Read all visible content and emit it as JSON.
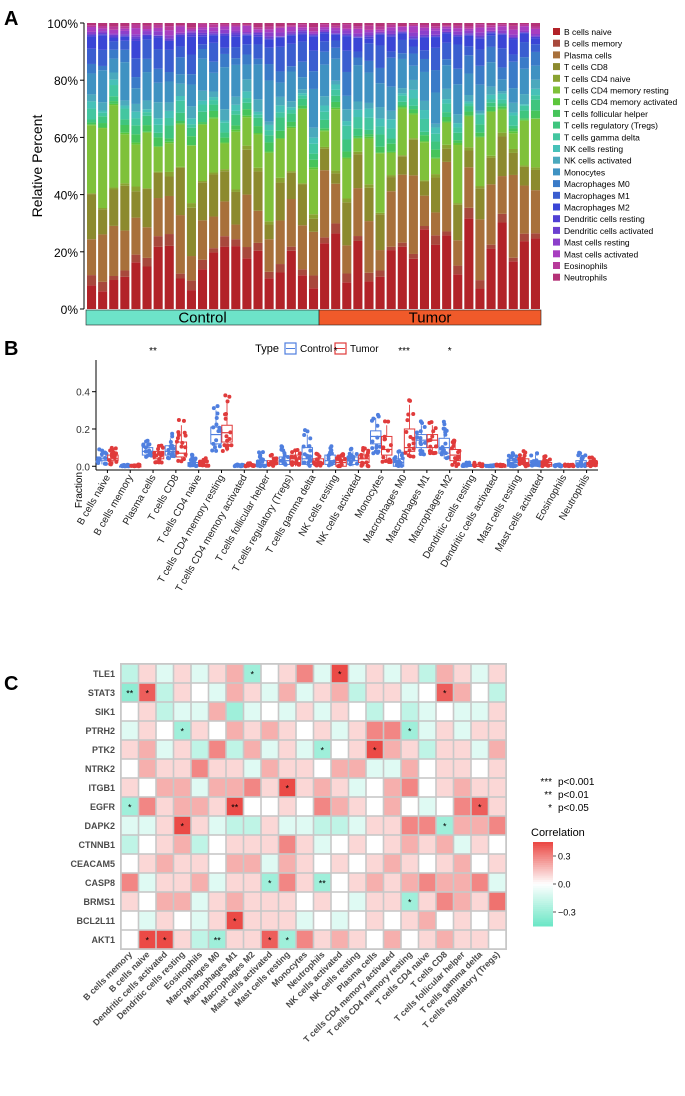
{
  "panels": {
    "a": {
      "letter": "A"
    },
    "b": {
      "letter": "B"
    },
    "c": {
      "letter": "C"
    }
  },
  "chart_data": [
    {
      "type": "bar",
      "subtype": "stacked-100",
      "ylabel": "Relative Percent",
      "ytick_labels": [
        "0%",
        "20%",
        "40%",
        "60%",
        "80%",
        "100%"
      ],
      "ylim": [
        0,
        100
      ],
      "group_bar": {
        "labels": [
          "Control",
          "Tumor"
        ],
        "sizes": [
          21,
          20
        ]
      },
      "cell_types": [
        "B cells naive",
        "B cells memory",
        "Plasma cells",
        "T cells CD8",
        "T cells CD4 naive",
        "T cells CD4 memory resting",
        "T cells CD4 memory activated",
        "T cells follicular helper",
        "T cells regulatory (Tregs)",
        "T cells gamma delta",
        "NK cells resting",
        "NK cells activated",
        "Monocytes",
        "Macrophages M0",
        "Macrophages M1",
        "Macrophages M2",
        "Dendritic cells resting",
        "Dendritic cells activated",
        "Mast cells resting",
        "Mast cells activated",
        "Eosinophils",
        "Neutrophils"
      ],
      "colors": [
        "#b22228",
        "#a8483c",
        "#a8703b",
        "#8c8a2e",
        "#8aa332",
        "#7fc13a",
        "#5cc63c",
        "#46c45a",
        "#3fc57e",
        "#43c6a0",
        "#47c1b8",
        "#4ba9bd",
        "#3f92c2",
        "#3a7bc8",
        "#3a5ed0",
        "#3a45d6",
        "#5040d4",
        "#6c40d0",
        "#8c3fca",
        "#a83ec0",
        "#b83a9a",
        "#b53277"
      ],
      "legend": "right",
      "samples_n": 41
    },
    {
      "type": "box",
      "legend_title": "Type",
      "series": [
        {
          "name": "Control",
          "color": "#4f7fdf"
        },
        {
          "name": "Tumor",
          "color": "#e03b3b"
        }
      ],
      "ylabel": "Fraction",
      "yticks": [
        0.0,
        0.2,
        0.4
      ],
      "ytick_labels": [
        "0.0",
        "0.2",
        "0.4"
      ],
      "ylim": [
        -0.02,
        0.57
      ],
      "categories": [
        "B cells naive",
        "B cells memory",
        "Plasma cells",
        "T cells CD8",
        "T cells CD4 naive",
        "T cells CD4 memory resting",
        "T cells CD4 memory activated",
        "T cells follicular helper",
        "T cells regulatory (Tregs)",
        "T cells gamma delta",
        "NK cells resting",
        "NK cells activated",
        "Monocytes",
        "Macrophages M0",
        "Macrophages M1",
        "Macrophages M2",
        "Dendritic cells resting",
        "Dendritic cells activated",
        "Mast cells resting",
        "Mast cells activated",
        "Eosinophils",
        "Neutrophils"
      ],
      "control": [
        [
          0.01,
          0.03,
          0.04,
          0.05,
          0.08
        ],
        [
          0.0,
          0.0,
          0.0,
          0.0,
          0.01
        ],
        [
          0.05,
          0.06,
          0.08,
          0.1,
          0.12
        ],
        [
          0.04,
          0.06,
          0.08,
          0.11,
          0.15
        ],
        [
          0.0,
          0.0,
          0.01,
          0.02,
          0.05
        ],
        [
          0.08,
          0.12,
          0.17,
          0.21,
          0.3
        ],
        [
          0.0,
          0.0,
          0.0,
          0.0,
          0.01
        ],
        [
          0.0,
          0.0,
          0.01,
          0.03,
          0.06
        ],
        [
          0.0,
          0.01,
          0.03,
          0.05,
          0.09
        ],
        [
          0.0,
          0.01,
          0.04,
          0.1,
          0.17
        ],
        [
          0.0,
          0.01,
          0.03,
          0.06,
          0.09
        ],
        [
          0.0,
          0.01,
          0.03,
          0.05,
          0.08
        ],
        [
          0.07,
          0.12,
          0.16,
          0.19,
          0.26
        ],
        [
          0.0,
          0.0,
          0.02,
          0.04,
          0.07
        ],
        [
          0.06,
          0.1,
          0.14,
          0.17,
          0.22
        ],
        [
          0.04,
          0.07,
          0.1,
          0.15,
          0.21
        ],
        [
          0.0,
          0.0,
          0.0,
          0.01,
          0.02
        ],
        [
          0.0,
          0.0,
          0.0,
          0.01,
          0.01
        ],
        [
          0.0,
          0.0,
          0.02,
          0.03,
          0.06
        ],
        [
          0.0,
          0.0,
          0.02,
          0.03,
          0.06
        ],
        [
          0.0,
          0.0,
          0.0,
          0.01,
          0.01
        ],
        [
          0.0,
          0.0,
          0.01,
          0.03,
          0.06
        ]
      ],
      "tumor": [
        [
          0.01,
          0.03,
          0.04,
          0.06,
          0.09
        ],
        [
          0.0,
          0.0,
          0.0,
          0.0,
          0.01
        ],
        [
          0.02,
          0.04,
          0.06,
          0.08,
          0.1
        ],
        [
          0.02,
          0.05,
          0.07,
          0.13,
          0.22
        ],
        [
          0.0,
          0.0,
          0.0,
          0.01,
          0.03
        ],
        [
          0.08,
          0.13,
          0.18,
          0.22,
          0.35
        ],
        [
          0.0,
          0.0,
          0.01,
          0.01,
          0.02
        ],
        [
          0.0,
          0.01,
          0.02,
          0.03,
          0.05
        ],
        [
          0.0,
          0.01,
          0.04,
          0.06,
          0.08
        ],
        [
          0.0,
          0.01,
          0.02,
          0.04,
          0.06
        ],
        [
          0.0,
          0.0,
          0.02,
          0.03,
          0.06
        ],
        [
          0.0,
          0.02,
          0.04,
          0.06,
          0.09
        ],
        [
          0.02,
          0.06,
          0.09,
          0.16,
          0.22
        ],
        [
          0.05,
          0.08,
          0.1,
          0.2,
          0.33
        ],
        [
          0.07,
          0.1,
          0.14,
          0.17,
          0.22
        ],
        [
          0.0,
          0.03,
          0.06,
          0.09,
          0.13
        ],
        [
          0.0,
          0.0,
          0.0,
          0.01,
          0.02
        ],
        [
          0.0,
          0.0,
          0.0,
          0.0,
          0.01
        ],
        [
          0.0,
          0.01,
          0.02,
          0.04,
          0.07
        ],
        [
          0.0,
          0.0,
          0.01,
          0.02,
          0.04
        ],
        [
          0.0,
          0.0,
          0.0,
          0.0,
          0.01
        ],
        [
          0.0,
          0.0,
          0.01,
          0.02,
          0.04
        ]
      ],
      "significance": [
        "",
        "",
        "**",
        "",
        "",
        "",
        "",
        "",
        "",
        "",
        "*",
        "",
        "",
        "***",
        "",
        "*",
        "",
        "",
        "",
        "",
        "",
        ""
      ]
    },
    {
      "type": "heatmap",
      "rows": [
        "TLE1",
        "STAT3",
        "SIK1",
        "PTRH2",
        "PTK2",
        "NTRK2",
        "ITGB1",
        "EGFR",
        "DAPK2",
        "CTNNB1",
        "CEACAM5",
        "CASP8",
        "BRMS1",
        "BCL2L11",
        "AKT1"
      ],
      "cols": [
        "B cells memory",
        "B cells naive",
        "Dendritic cells activated",
        "Dendritic cells resting",
        "Eosinophils",
        "Macrophages M0",
        "Macrophages M1",
        "Macrophages M2",
        "Mast cells activated",
        "Mast cells resting",
        "Monocytes",
        "Neutrophils",
        "NK cells activated",
        "NK cells resting",
        "Plasma cells",
        "T cells CD4 memory activated",
        "T cells CD4 memory resting",
        "T cells CD4 naive",
        "T cells CD8",
        "T cells follicular helper",
        "T cells gamma delta",
        "T cells regulatory (Tregs)"
      ],
      "values": [
        [
          -0.2,
          0.1,
          -0.1,
          0.1,
          -0.1,
          0.1,
          0.2,
          -0.3,
          0.0,
          0.1,
          0.3,
          -0.1,
          0.45,
          -0.1,
          0.1,
          -0.1,
          0.1,
          -0.2,
          0.2,
          0.1,
          -0.1,
          0.1
        ],
        [
          -0.35,
          0.4,
          -0.2,
          0.1,
          0.0,
          -0.1,
          0.2,
          0.1,
          -0.1,
          0.2,
          -0.1,
          0.1,
          0.2,
          -0.2,
          0.1,
          0.1,
          -0.1,
          0.0,
          0.4,
          0.2,
          0.0,
          -0.2
        ],
        [
          0.0,
          0.1,
          -0.2,
          -0.1,
          -0.1,
          0.2,
          -0.3,
          -0.1,
          0.0,
          -0.1,
          0.1,
          -0.1,
          0.1,
          0.0,
          -0.2,
          0.0,
          -0.2,
          -0.1,
          0.0,
          -0.1,
          -0.1,
          0.1
        ],
        [
          -0.1,
          0.1,
          0.0,
          -0.3,
          0.1,
          0.0,
          0.2,
          0.1,
          0.2,
          0.1,
          0.0,
          0.1,
          -0.1,
          0.1,
          0.3,
          0.3,
          -0.3,
          -0.1,
          0.1,
          -0.1,
          0.1,
          0.1
        ],
        [
          0.1,
          0.2,
          -0.1,
          0.1,
          -0.2,
          0.3,
          -0.2,
          0.2,
          -0.1,
          0.1,
          -0.1,
          -0.3,
          0.0,
          0.1,
          0.45,
          0.2,
          0.1,
          -0.2,
          0.1,
          0.1,
          -0.1,
          0.2
        ],
        [
          0.0,
          0.2,
          0.1,
          0.1,
          0.3,
          0.1,
          0.1,
          -0.1,
          0.2,
          0.1,
          0.1,
          0.0,
          0.2,
          0.2,
          -0.1,
          -0.1,
          0.2,
          0.0,
          0.1,
          0.1,
          0.0,
          0.1
        ],
        [
          0.1,
          0.0,
          0.2,
          0.2,
          -0.1,
          0.2,
          0.2,
          0.3,
          0.1,
          0.45,
          0.1,
          0.2,
          0.1,
          -0.1,
          0.0,
          0.2,
          0.3,
          0.0,
          0.1,
          0.2,
          0.1,
          0.1
        ],
        [
          -0.3,
          0.3,
          0.1,
          0.2,
          0.2,
          0.1,
          0.45,
          0.0,
          0.0,
          0.1,
          0.0,
          0.3,
          0.2,
          0.1,
          0.0,
          0.2,
          0.0,
          -0.1,
          0.0,
          0.3,
          0.4,
          0.1
        ],
        [
          -0.1,
          -0.1,
          0.1,
          0.45,
          0.1,
          -0.1,
          -0.2,
          -0.2,
          0.1,
          -0.1,
          -0.1,
          -0.2,
          -0.2,
          -0.1,
          0.1,
          0.1,
          0.3,
          0.3,
          -0.3,
          0.2,
          0.2,
          0.3
        ],
        [
          -0.2,
          0.0,
          0.1,
          0.2,
          -0.2,
          0.0,
          0.1,
          0.1,
          0.1,
          0.3,
          0.1,
          -0.1,
          0.0,
          0.1,
          0.0,
          0.1,
          0.2,
          0.1,
          0.2,
          -0.1,
          0.1,
          0.0
        ],
        [
          0.0,
          0.1,
          0.2,
          0.1,
          0.1,
          0.0,
          0.2,
          0.2,
          -0.1,
          0.2,
          0.1,
          0.0,
          0.1,
          0.0,
          0.1,
          0.2,
          0.1,
          0.0,
          0.1,
          0.2,
          0.0,
          0.1
        ],
        [
          0.3,
          -0.1,
          0.1,
          0.1,
          0.2,
          -0.1,
          0.1,
          0.1,
          -0.3,
          0.3,
          0.1,
          -0.3,
          0.0,
          0.1,
          0.2,
          0.1,
          0.2,
          0.3,
          0.2,
          0.2,
          0.3,
          -0.1
        ],
        [
          0.1,
          0.0,
          0.2,
          0.2,
          -0.1,
          0.1,
          0.2,
          0.1,
          0.1,
          0.1,
          0.0,
          0.1,
          0.0,
          -0.1,
          0.1,
          0.1,
          -0.3,
          0.1,
          0.3,
          0.2,
          0.1,
          0.35
        ],
        [
          0.0,
          -0.1,
          0.1,
          0.0,
          -0.1,
          0.1,
          0.45,
          0.1,
          0.1,
          0.1,
          -0.1,
          0.0,
          -0.1,
          0.0,
          0.1,
          0.0,
          0.1,
          0.2,
          0.0,
          0.1,
          0.0,
          0.1
        ],
        [
          0.0,
          0.45,
          0.45,
          0.1,
          -0.2,
          -0.3,
          0.1,
          0.1,
          0.4,
          -0.3,
          0.3,
          0.1,
          0.2,
          0.1,
          0.0,
          0.2,
          0.0,
          0.1,
          0.2,
          0.1,
          0.1,
          0.0
        ]
      ],
      "stars": [
        [
          "",
          "",
          "",
          "",
          "",
          "",
          "",
          "*",
          "",
          "",
          "",
          "",
          "*",
          "",
          "",
          "",
          "",
          "",
          "",
          "",
          "",
          ""
        ],
        [
          "**",
          "*",
          "",
          "",
          "",
          "",
          "",
          "",
          "",
          "",
          "",
          "",
          "",
          "",
          "",
          "",
          "",
          "",
          "*",
          "",
          "",
          ""
        ],
        [
          "",
          "",
          "",
          "",
          "",
          "",
          "",
          "",
          "",
          "",
          "",
          "",
          "",
          "",
          "",
          "",
          "",
          "",
          "",
          "",
          "",
          ""
        ],
        [
          "",
          "",
          "",
          "*",
          "",
          "",
          "",
          "",
          "",
          "",
          "",
          "",
          "",
          "",
          "",
          "",
          "*",
          "",
          "",
          "",
          "",
          ""
        ],
        [
          "",
          "",
          "",
          "",
          "",
          "",
          "",
          "",
          "",
          "",
          "",
          "*",
          "",
          "",
          "*",
          "",
          "",
          "",
          "",
          "",
          "",
          ""
        ],
        [
          "",
          "",
          "",
          "",
          "",
          "",
          "",
          "",
          "",
          "",
          "",
          "",
          "",
          "",
          "",
          "",
          "",
          "",
          "",
          "",
          "",
          ""
        ],
        [
          "",
          "",
          "",
          "",
          "",
          "",
          "",
          "",
          "",
          "*",
          "",
          "",
          "",
          "",
          "",
          "",
          "",
          "",
          "",
          "",
          "",
          ""
        ],
        [
          "*",
          "",
          "",
          "",
          "",
          "",
          "**",
          "",
          "",
          "",
          "",
          "",
          "",
          "",
          "",
          "",
          "",
          "",
          "",
          "",
          "*",
          ""
        ],
        [
          "",
          "",
          "",
          "*",
          "",
          "",
          "",
          "",
          "",
          "",
          "",
          "",
          "",
          "",
          "",
          "",
          "",
          "",
          "*",
          "",
          "",
          ""
        ],
        [
          "",
          "",
          "",
          "",
          "",
          "",
          "",
          "",
          "",
          "",
          "",
          "",
          "",
          "",
          "",
          "",
          "",
          "",
          "",
          "",
          "",
          ""
        ],
        [
          "",
          "",
          "",
          "",
          "",
          "",
          "",
          "",
          "",
          "",
          "",
          "",
          "",
          "",
          "",
          "",
          "",
          "",
          "",
          "",
          "",
          ""
        ],
        [
          "",
          "",
          "",
          "",
          "",
          "",
          "",
          "",
          "*",
          "",
          "",
          "**",
          "",
          "",
          "",
          "",
          "",
          "",
          "",
          "",
          "",
          ""
        ],
        [
          "",
          "",
          "",
          "",
          "",
          "",
          "",
          "",
          "",
          "",
          "",
          "",
          "",
          "",
          "",
          "",
          "*",
          "",
          "",
          "",
          "",
          ""
        ],
        [
          "",
          "",
          "",
          "",
          "",
          "",
          "*",
          "",
          "",
          "",
          "",
          "",
          "",
          "",
          "",
          "",
          "",
          "",
          "",
          "",
          "",
          ""
        ],
        [
          "",
          "*",
          "*",
          "",
          "",
          "**",
          "",
          "",
          "*",
          "*",
          "",
          "",
          "",
          "",
          "",
          "",
          "",
          "",
          "",
          "",
          "",
          ""
        ]
      ],
      "sig_legend": [
        {
          "mark": "***",
          "label": "p<0.001"
        },
        {
          "mark": "**",
          "label": "p<0.01"
        },
        {
          "mark": "*",
          "label": "p<0.05"
        }
      ],
      "colorbar_title": "Correlation",
      "colorbar_ticks": [
        "0.3",
        "0.0",
        "−0.3"
      ],
      "colorbar_values": [
        0.3,
        0.0,
        -0.3
      ]
    }
  ]
}
